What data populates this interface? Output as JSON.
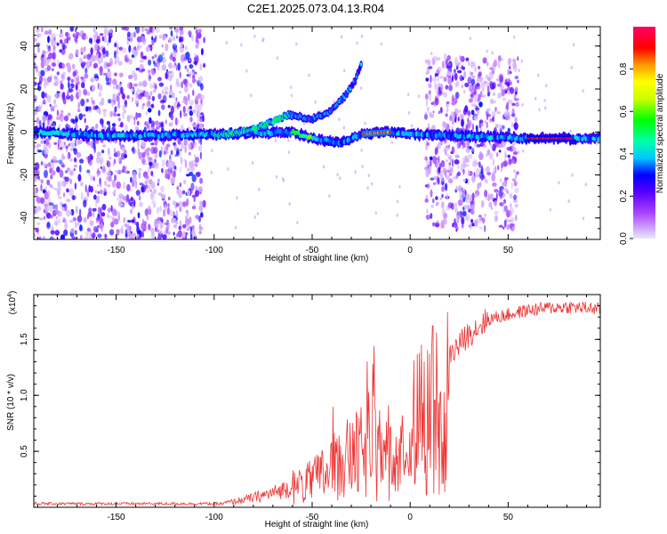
{
  "title": "C2E1.2025.073.04.13.R04",
  "chart_data": [
    {
      "type": "heatmap",
      "xlabel": "Height of straight line (km)",
      "ylabel": "Frequency (Hz)",
      "xlim": [
        -192,
        97
      ],
      "ylim": [
        -50,
        49
      ],
      "xticks": [
        -150,
        -100,
        -50,
        0,
        50
      ],
      "yticks": [
        -40,
        -20,
        0,
        20,
        40
      ],
      "xtick_labels": [
        "-150",
        "-100",
        "-50",
        "0",
        "50"
      ],
      "ytick_labels": [
        "-40",
        "-20",
        "0",
        "20",
        "40"
      ],
      "colorbar": {
        "label": "Normalized spectral amplitude",
        "range": [
          0,
          1
        ],
        "ticks": [
          0.0,
          0.2,
          0.4,
          0.6,
          0.8
        ],
        "tick_labels": [
          "0.0",
          "0.2",
          "0.4",
          "0.6",
          "0.8"
        ],
        "colors": [
          "#e8e8ff",
          "#7700ee",
          "#0000ff",
          "#00e5ff",
          "#00ff00",
          "#ffff00",
          "#ff8800",
          "#ff0000",
          "#ff0077"
        ]
      },
      "features": [
        {
          "name": "main-trace",
          "points": [
            [
              -192,
              0
            ],
            [
              -150,
              -2
            ],
            [
              -100,
              -1
            ],
            [
              -60,
              0
            ],
            [
              -50,
              -3
            ],
            [
              -35,
              -5
            ],
            [
              -25,
              -1
            ],
            [
              -10,
              0
            ],
            [
              0,
              -1
            ],
            [
              30,
              -2
            ],
            [
              60,
              -3
            ],
            [
              97,
              -3
            ]
          ]
        },
        {
          "name": "rising-branch",
          "points": [
            [
              -100,
              -2
            ],
            [
              -80,
              1
            ],
            [
              -62,
              8
            ],
            [
              -50,
              6
            ],
            [
              -40,
              10
            ],
            [
              -33,
              17
            ],
            [
              -28,
              24
            ],
            [
              -25,
              31
            ]
          ]
        },
        {
          "name": "strong-segment",
          "points": [
            [
              -25,
              0
            ],
            [
              -10,
              0
            ],
            [
              60,
              -3
            ],
            [
              82,
              -3
            ]
          ]
        }
      ],
      "noise_regions": [
        {
          "x": [
            -192,
            -105
          ],
          "y": [
            -50,
            49
          ],
          "level": 0.2
        },
        {
          "x": [
            8,
            55
          ],
          "y": [
            -45,
            35
          ],
          "level": 0.15
        }
      ]
    },
    {
      "type": "line",
      "xlabel": "Height of straight line (km)",
      "ylabel": "SNR (10 * v/v)",
      "y_multiplier": "(x10",
      "y_multiplier_exp": "4",
      "y_multiplier_close": ")",
      "xlim": [
        -192,
        97
      ],
      "ylim": [
        0,
        1.9
      ],
      "xticks": [
        -150,
        -100,
        -50,
        0,
        50
      ],
      "yticks": [
        0.5,
        1.0,
        1.5
      ],
      "xtick_labels": [
        "-150",
        "-100",
        "-50",
        "0",
        "50"
      ],
      "ytick_labels": [
        "0.5",
        "1.0",
        "1.5"
      ],
      "color": "#ee3333",
      "series": [
        {
          "x": [
            -192,
            -170,
            -150,
            -120,
            -100,
            -90,
            -80,
            -70,
            -60,
            -50,
            -45,
            -40,
            -35,
            -30,
            -25,
            -20,
            -15,
            -10,
            -5,
            0,
            5,
            10,
            15,
            20,
            25,
            30,
            35,
            40,
            50,
            60,
            70,
            80,
            90,
            97
          ],
          "values": [
            0.02,
            0.02,
            0.02,
            0.02,
            0.03,
            0.06,
            0.1,
            0.15,
            0.22,
            0.3,
            0.38,
            0.45,
            0.52,
            0.58,
            0.63,
            0.68,
            0.78,
            0.9,
            1.0,
            1.05,
            1.05,
            1.12,
            1.25,
            1.35,
            1.45,
            1.55,
            1.62,
            1.68,
            1.72,
            1.76,
            1.78,
            1.79,
            1.78,
            1.77
          ]
        }
      ]
    }
  ]
}
